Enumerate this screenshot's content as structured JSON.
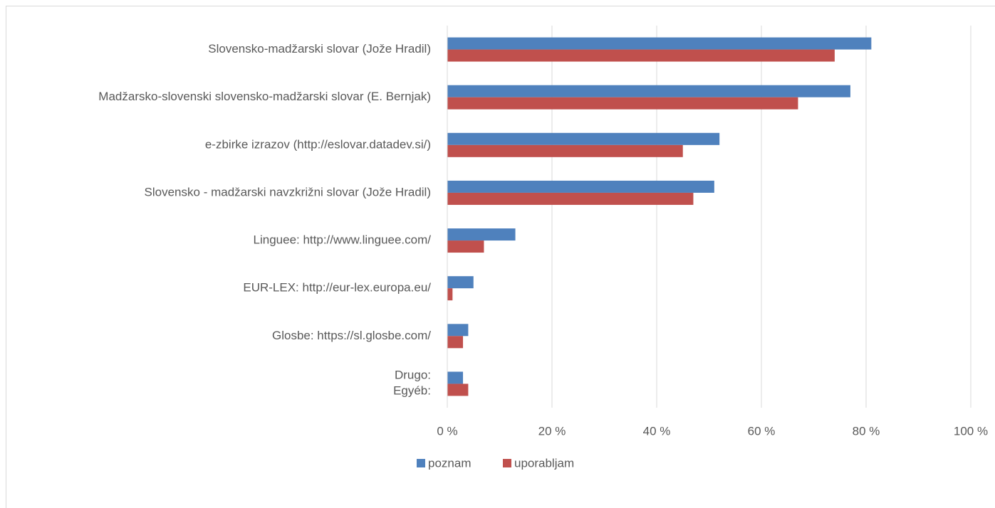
{
  "chart_data": {
    "type": "bar",
    "orientation": "horizontal",
    "categories": [
      "Slovensko-madžarski slovar (Jože Hradil)",
      "Madžarsko-slovenski slovensko-madžarski slovar (E. Bernjak)",
      "e-zbirke izrazov (http://eslovar.datadev.si/)",
      "Slovensko - madžarski navzkrižni slovar (Jože Hradil)",
      "Linguee: http://www.linguee.com/",
      "EUR-LEX: http://eur-lex.europa.eu/",
      "Glosbe: https://sl.glosbe.com/",
      "Drugo:\nEgyéb:"
    ],
    "series": [
      {
        "name": "poznam",
        "color": "#4f81bd",
        "values": [
          81,
          77,
          52,
          51,
          13,
          5,
          4,
          3
        ]
      },
      {
        "name": "uporabljam",
        "color": "#c0504d",
        "values": [
          74,
          67,
          45,
          47,
          7,
          1,
          3,
          4
        ]
      }
    ],
    "xlim": [
      0,
      100
    ],
    "xticks": [
      {
        "value": 0,
        "label": "0 %"
      },
      {
        "value": 20,
        "label": "20 %"
      },
      {
        "value": 40,
        "label": "40 %"
      },
      {
        "value": 60,
        "label": "60 %"
      },
      {
        "value": 80,
        "label": "80 %"
      },
      {
        "value": 100,
        "label": "100 %"
      }
    ],
    "grid": true,
    "legend": "bottom"
  }
}
